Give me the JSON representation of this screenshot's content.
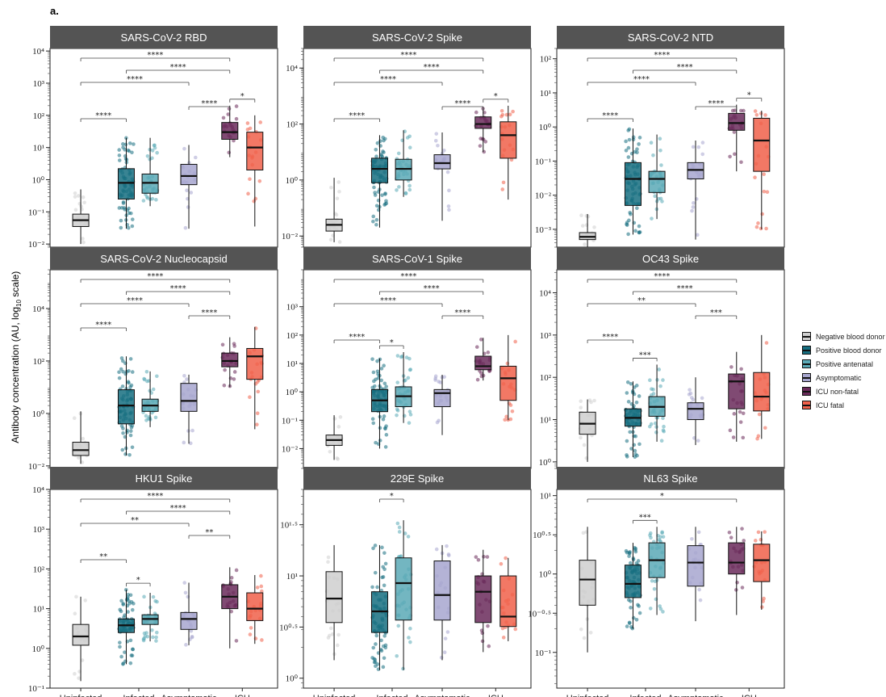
{
  "figure": {
    "panel_label": "a.",
    "y_axis_title": "Antibody concentration (AU, log10 scale)"
  },
  "legend": [
    {
      "name": "Negative blood donor",
      "color": "#cfcfcf"
    },
    {
      "name": "Positive blood donor",
      "color": "#166e80"
    },
    {
      "name": "Positive antenatal",
      "color": "#5aa9b6"
    },
    {
      "name": "Asymptomatic",
      "color": "#a7a6cf"
    },
    {
      "name": "ICU non-fatal",
      "color": "#6a2a5a"
    },
    {
      "name": "ICU fatal",
      "color": "#f0604a"
    }
  ],
  "chart_data": [
    {
      "type": "box",
      "title": "SARS-CoV-2 RBD",
      "x_categories": [
        "Uninfected",
        "Infected",
        "Asymptomatic",
        "ICU"
      ],
      "yscale": "log10",
      "ylim": [
        0.008,
        12000
      ],
      "y_ticks": [
        {
          "v": 0.01,
          "l": "10⁻²"
        },
        {
          "v": 0.1,
          "l": "10⁻¹"
        },
        {
          "v": 1,
          "l": "10⁰"
        },
        {
          "v": 10,
          "l": "10¹"
        },
        {
          "v": 100,
          "l": "10²"
        },
        {
          "v": 1000,
          "l": "10³"
        },
        {
          "v": 10000,
          "l": "10⁴"
        }
      ],
      "boxes": [
        {
          "group": 0,
          "q1": 0.035,
          "median": 0.055,
          "q3": 0.085,
          "lo": 0.01,
          "hi": 0.5
        },
        {
          "group": 1,
          "q1": 0.25,
          "median": 0.8,
          "q3": 2.2,
          "lo": 0.03,
          "hi": 20
        },
        {
          "group": 2,
          "q1": 0.38,
          "median": 0.8,
          "q3": 1.5,
          "lo": 0.15,
          "hi": 20
        },
        {
          "group": 3,
          "q1": 0.7,
          "median": 1.3,
          "q3": 3,
          "lo": 0.03,
          "hi": 12
        },
        {
          "group": 4,
          "q1": 18,
          "median": 30,
          "q3": 60,
          "lo": 5,
          "hi": 200
        },
        {
          "group": 5,
          "q1": 2,
          "median": 10,
          "q3": 30,
          "lo": 0.035,
          "hi": 100
        }
      ],
      "brackets": [
        {
          "a": 4,
          "b": 5,
          "label": "*"
        },
        {
          "a": 0,
          "b": 1,
          "label": "****"
        },
        {
          "a": 0,
          "b": 3,
          "label": "****"
        },
        {
          "a": 0,
          "b": 4,
          "label": "****"
        },
        {
          "a": 1,
          "b": 4,
          "label": "****"
        },
        {
          "a": 3,
          "b": 4,
          "label": "****"
        }
      ]
    },
    {
      "type": "box",
      "title": "SARS-CoV-2 Spike",
      "x_categories": [
        "Uninfected",
        "Infected",
        "Asymptomatic",
        "ICU"
      ],
      "yscale": "log10",
      "ylim": [
        0.004,
        50000
      ],
      "y_ticks": [
        {
          "v": 0.01,
          "l": "10⁻²"
        },
        {
          "v": 1,
          "l": "10⁰"
        },
        {
          "v": 100,
          "l": "10²"
        },
        {
          "v": 10000,
          "l": "10⁴"
        }
      ],
      "boxes": [
        {
          "group": 0,
          "q1": 0.015,
          "median": 0.025,
          "q3": 0.04,
          "lo": 0.006,
          "hi": 1.2
        },
        {
          "group": 1,
          "q1": 0.8,
          "median": 2.5,
          "q3": 6,
          "lo": 0.02,
          "hi": 40
        },
        {
          "group": 2,
          "q1": 1,
          "median": 2.5,
          "q3": 5.5,
          "lo": 0.25,
          "hi": 60
        },
        {
          "group": 3,
          "q1": 2.5,
          "median": 4,
          "q3": 8,
          "lo": 0.035,
          "hi": 50
        },
        {
          "group": 4,
          "q1": 70,
          "median": 100,
          "q3": 180,
          "lo": 10,
          "hi": 400
        },
        {
          "group": 5,
          "q1": 6,
          "median": 40,
          "q3": 120,
          "lo": 0.2,
          "hi": 450
        }
      ],
      "brackets": [
        {
          "a": 4,
          "b": 5,
          "label": "*"
        },
        {
          "a": 0,
          "b": 1,
          "label": "****"
        },
        {
          "a": 0,
          "b": 3,
          "label": "****"
        },
        {
          "a": 0,
          "b": 4,
          "label": "****"
        },
        {
          "a": 1,
          "b": 4,
          "label": "****"
        },
        {
          "a": 3,
          "b": 4,
          "label": "****"
        }
      ]
    },
    {
      "type": "box",
      "title": "SARS-CoV-2 NTD",
      "x_categories": [
        "Uninfected",
        "Infected",
        "Asymptomatic",
        "ICU"
      ],
      "yscale": "log10",
      "ylim": [
        0.0003,
        200
      ],
      "y_ticks": [
        {
          "v": 0.001,
          "l": "10⁻³"
        },
        {
          "v": 0.01,
          "l": "10⁻²"
        },
        {
          "v": 0.1,
          "l": "10⁻¹"
        },
        {
          "v": 1,
          "l": "10⁰"
        },
        {
          "v": 10,
          "l": "10¹"
        },
        {
          "v": 100,
          "l": "10²"
        }
      ],
      "boxes": [
        {
          "group": 0,
          "q1": 0.0005,
          "median": 0.0006,
          "q3": 0.0008,
          "lo": 0.0003,
          "hi": 0.0028
        },
        {
          "group": 1,
          "q1": 0.005,
          "median": 0.03,
          "q3": 0.09,
          "lo": 0.0007,
          "hi": 0.9
        },
        {
          "group": 2,
          "q1": 0.012,
          "median": 0.03,
          "q3": 0.05,
          "lo": 0.002,
          "hi": 0.6
        },
        {
          "group": 3,
          "q1": 0.03,
          "median": 0.055,
          "q3": 0.09,
          "lo": 0.0005,
          "hi": 0.4
        },
        {
          "group": 4,
          "q1": 0.8,
          "median": 1.3,
          "q3": 2.5,
          "lo": 0.05,
          "hi": 4.5
        },
        {
          "group": 5,
          "q1": 0.05,
          "median": 0.4,
          "q3": 1.8,
          "lo": 0.001,
          "hi": 3
        }
      ],
      "brackets": [
        {
          "a": 4,
          "b": 5,
          "label": "*"
        },
        {
          "a": 0,
          "b": 1,
          "label": "****"
        },
        {
          "a": 0,
          "b": 3,
          "label": "****"
        },
        {
          "a": 0,
          "b": 4,
          "label": "****"
        },
        {
          "a": 1,
          "b": 4,
          "label": "****"
        },
        {
          "a": 3,
          "b": 4,
          "label": "****"
        }
      ]
    },
    {
      "type": "box",
      "title": "SARS-CoV-2 Nucleocapsid",
      "x_categories": [
        "Uninfected",
        "Infected",
        "Asymptomatic",
        "ICU"
      ],
      "yscale": "log10",
      "ylim": [
        0.008,
        300000
      ],
      "y_ticks": [
        {
          "v": 0.01,
          "l": "10⁻²"
        },
        {
          "v": 1,
          "l": "10⁰"
        },
        {
          "v": 100,
          "l": "10²"
        },
        {
          "v": 10000,
          "l": "10⁴"
        }
      ],
      "boxes": [
        {
          "group": 0,
          "q1": 0.025,
          "median": 0.04,
          "q3": 0.08,
          "lo": 0.012,
          "hi": 1.2
        },
        {
          "group": 1,
          "q1": 0.4,
          "median": 2,
          "q3": 8,
          "lo": 0.025,
          "hi": 150
        },
        {
          "group": 2,
          "q1": 1.2,
          "median": 2,
          "q3": 3.5,
          "lo": 0.3,
          "hi": 40
        },
        {
          "group": 3,
          "q1": 1.2,
          "median": 3,
          "q3": 14,
          "lo": 0.07,
          "hi": 30
        },
        {
          "group": 4,
          "q1": 60,
          "median": 100,
          "q3": 200,
          "lo": 10,
          "hi": 800
        },
        {
          "group": 5,
          "q1": 20,
          "median": 150,
          "q3": 300,
          "lo": 0.25,
          "hi": 2000
        }
      ],
      "brackets": [
        {
          "a": 0,
          "b": 1,
          "label": "****"
        },
        {
          "a": 0,
          "b": 3,
          "label": "****"
        },
        {
          "a": 0,
          "b": 4,
          "label": "****"
        },
        {
          "a": 1,
          "b": 4,
          "label": "****"
        },
        {
          "a": 3,
          "b": 4,
          "label": "****"
        }
      ]
    },
    {
      "type": "box",
      "title": "SARS-CoV-1 Spike",
      "x_categories": [
        "Uninfected",
        "Infected",
        "Asymptomatic",
        "ICU"
      ],
      "yscale": "log10",
      "ylim": [
        0.002,
        20000
      ],
      "y_ticks": [
        {
          "v": 0.01,
          "l": "10⁻²"
        },
        {
          "v": 0.1,
          "l": "10⁻¹"
        },
        {
          "v": 1,
          "l": "10⁰"
        },
        {
          "v": 10,
          "l": "10¹"
        },
        {
          "v": 100,
          "l": "10²"
        },
        {
          "v": 1000,
          "l": "10³"
        }
      ],
      "boxes": [
        {
          "group": 0,
          "q1": 0.013,
          "median": 0.02,
          "q3": 0.03,
          "lo": 0.004,
          "hi": 0.15
        },
        {
          "group": 1,
          "q1": 0.2,
          "median": 0.5,
          "q3": 1.2,
          "lo": 0.01,
          "hi": 15
        },
        {
          "group": 2,
          "q1": 0.3,
          "median": 0.7,
          "q3": 1.5,
          "lo": 0.08,
          "hi": 25
        },
        {
          "group": 3,
          "q1": 0.3,
          "median": 0.9,
          "q3": 1.2,
          "lo": 0.03,
          "hi": 4
        },
        {
          "group": 4,
          "q1": 6,
          "median": 8,
          "q3": 18,
          "lo": 2.5,
          "hi": 80
        },
        {
          "group": 5,
          "q1": 0.5,
          "median": 3,
          "q3": 8,
          "lo": 0.1,
          "hi": 100
        }
      ],
      "brackets": [
        {
          "a": 1,
          "b": 2,
          "label": "*"
        },
        {
          "a": 0,
          "b": 1,
          "label": "****"
        },
        {
          "a": 0,
          "b": 3,
          "label": "****"
        },
        {
          "a": 0,
          "b": 4,
          "label": "****"
        },
        {
          "a": 1,
          "b": 4,
          "label": "****"
        },
        {
          "a": 3,
          "b": 4,
          "label": "****"
        }
      ]
    },
    {
      "type": "box",
      "title": "OC43 Spike",
      "x_categories": [
        "Uninfected",
        "Infected",
        "Asymptomatic",
        "ICU"
      ],
      "yscale": "log10",
      "ylim": [
        0.7,
        35000
      ],
      "y_ticks": [
        {
          "v": 1,
          "l": "10⁰"
        },
        {
          "v": 10,
          "l": "10¹"
        },
        {
          "v": 100,
          "l": "10²"
        },
        {
          "v": 1000,
          "l": "10³"
        },
        {
          "v": 10000,
          "l": "10⁴"
        }
      ],
      "boxes": [
        {
          "group": 0,
          "q1": 4.5,
          "median": 8,
          "q3": 15,
          "lo": 1,
          "hi": 30
        },
        {
          "group": 1,
          "q1": 7,
          "median": 11,
          "q3": 18,
          "lo": 1.3,
          "hi": 80
        },
        {
          "group": 2,
          "q1": 12,
          "median": 20,
          "q3": 35,
          "lo": 3,
          "hi": 200
        },
        {
          "group": 3,
          "q1": 10,
          "median": 18,
          "q3": 25,
          "lo": 2.5,
          "hi": 100
        },
        {
          "group": 4,
          "q1": 18,
          "median": 80,
          "q3": 120,
          "lo": 3,
          "hi": 400
        },
        {
          "group": 5,
          "q1": 16,
          "median": 35,
          "q3": 130,
          "lo": 3.5,
          "hi": 1000
        }
      ],
      "brackets": [
        {
          "a": 1,
          "b": 2,
          "label": "***"
        },
        {
          "a": 0,
          "b": 1,
          "label": "****"
        },
        {
          "a": 0,
          "b": 3,
          "label": "**"
        },
        {
          "a": 0,
          "b": 4,
          "label": "****"
        },
        {
          "a": 1,
          "b": 4,
          "label": "****"
        },
        {
          "a": 3,
          "b": 4,
          "label": "***"
        }
      ]
    },
    {
      "type": "box",
      "title": "HKU1 Spike",
      "x_categories": [
        "Uninfected",
        "Infected",
        "Asymptomatic",
        "ICU"
      ],
      "yscale": "log10",
      "ylim": [
        0.1,
        10000
      ],
      "y_ticks": [
        {
          "v": 0.1,
          "l": "10⁻¹"
        },
        {
          "v": 1,
          "l": "10⁰"
        },
        {
          "v": 10,
          "l": "10¹"
        },
        {
          "v": 100,
          "l": "10²"
        },
        {
          "v": 1000,
          "l": "10³"
        },
        {
          "v": 10000,
          "l": "10⁴"
        }
      ],
      "boxes": [
        {
          "group": 0,
          "q1": 1.2,
          "median": 2,
          "q3": 4,
          "lo": 0.15,
          "hi": 20
        },
        {
          "group": 1,
          "q1": 2.5,
          "median": 3.8,
          "q3": 5.5,
          "lo": 0.4,
          "hi": 30
        },
        {
          "group": 2,
          "q1": 4,
          "median": 5.5,
          "q3": 7,
          "lo": 1.5,
          "hi": 25
        },
        {
          "group": 3,
          "q1": 3,
          "median": 5.5,
          "q3": 8,
          "lo": 1.2,
          "hi": 45
        },
        {
          "group": 4,
          "q1": 10,
          "median": 20,
          "q3": 40,
          "lo": 1,
          "hi": 110
        },
        {
          "group": 5,
          "q1": 5,
          "median": 10,
          "q3": 25,
          "lo": 1.3,
          "hi": 70
        }
      ],
      "brackets": [
        {
          "a": 1,
          "b": 2,
          "label": "*"
        },
        {
          "a": 0,
          "b": 1,
          "label": "**"
        },
        {
          "a": 0,
          "b": 3,
          "label": "**"
        },
        {
          "a": 0,
          "b": 4,
          "label": "****"
        },
        {
          "a": 1,
          "b": 4,
          "label": "****"
        },
        {
          "a": 3,
          "b": 4,
          "label": "**"
        }
      ]
    },
    {
      "type": "box",
      "title": "229E Spike",
      "x_categories": [
        "Uninfected",
        "Infected",
        "Asymptomatic",
        "ICU"
      ],
      "yscale": "log10",
      "ylim": [
        0.8,
        70
      ],
      "y_ticks": [
        {
          "v": 1,
          "l": "10⁰"
        },
        {
          "v": 3.162,
          "l": "10⁰·⁵"
        },
        {
          "v": 10,
          "l": "10¹"
        },
        {
          "v": 31.62,
          "l": "10¹·⁵"
        }
      ],
      "boxes": [
        {
          "group": 0,
          "q1": 3.5,
          "median": 6,
          "q3": 11,
          "lo": 1.5,
          "hi": 20
        },
        {
          "group": 1,
          "q1": 2.8,
          "median": 4.5,
          "q3": 7,
          "lo": 1.2,
          "hi": 20
        },
        {
          "group": 2,
          "q1": 3.7,
          "median": 8.5,
          "q3": 15,
          "lo": 1.2,
          "hi": 35
        },
        {
          "group": 3,
          "q1": 3.7,
          "median": 6.5,
          "q3": 14,
          "lo": 1.5,
          "hi": 20
        },
        {
          "group": 4,
          "q1": 3.5,
          "median": 7,
          "q3": 10,
          "lo": 1.8,
          "hi": 18
        },
        {
          "group": 5,
          "q1": 3.2,
          "median": 4,
          "q3": 10,
          "lo": 2.3,
          "hi": 15
        }
      ],
      "brackets": [
        {
          "a": 1,
          "b": 2,
          "label": "*"
        }
      ]
    },
    {
      "type": "box",
      "title": "NL63 Spike",
      "x_categories": [
        "Uninfected",
        "Infected",
        "Asymptomatic",
        "ICU"
      ],
      "yscale": "log10",
      "ylim": [
        0.035,
        12
      ],
      "y_ticks": [
        {
          "v": 0.1,
          "l": "10⁻¹"
        },
        {
          "v": 0.316,
          "l": "10⁻⁰·⁵"
        },
        {
          "v": 1,
          "l": "10⁰"
        },
        {
          "v": 3.162,
          "l": "10⁰·⁵"
        },
        {
          "v": 10,
          "l": "10¹"
        }
      ],
      "boxes": [
        {
          "group": 0,
          "q1": 0.4,
          "median": 0.85,
          "q3": 1.5,
          "lo": 0.1,
          "hi": 4
        },
        {
          "group": 1,
          "q1": 0.5,
          "median": 0.75,
          "q3": 1.3,
          "lo": 0.2,
          "hi": 2.5
        },
        {
          "group": 2,
          "q1": 0.9,
          "median": 1.5,
          "q3": 2.5,
          "lo": 0.3,
          "hi": 4
        },
        {
          "group": 3,
          "q1": 0.7,
          "median": 1.4,
          "q3": 2.3,
          "lo": 0.25,
          "hi": 4
        },
        {
          "group": 4,
          "q1": 1,
          "median": 1.4,
          "q3": 2.5,
          "lo": 0.3,
          "hi": 4
        },
        {
          "group": 5,
          "q1": 0.8,
          "median": 1.5,
          "q3": 2.4,
          "lo": 0.35,
          "hi": 3.5
        }
      ],
      "brackets": [
        {
          "a": 1,
          "b": 2,
          "label": "***"
        },
        {
          "a": 0,
          "b": 4,
          "label": "*"
        }
      ]
    }
  ]
}
